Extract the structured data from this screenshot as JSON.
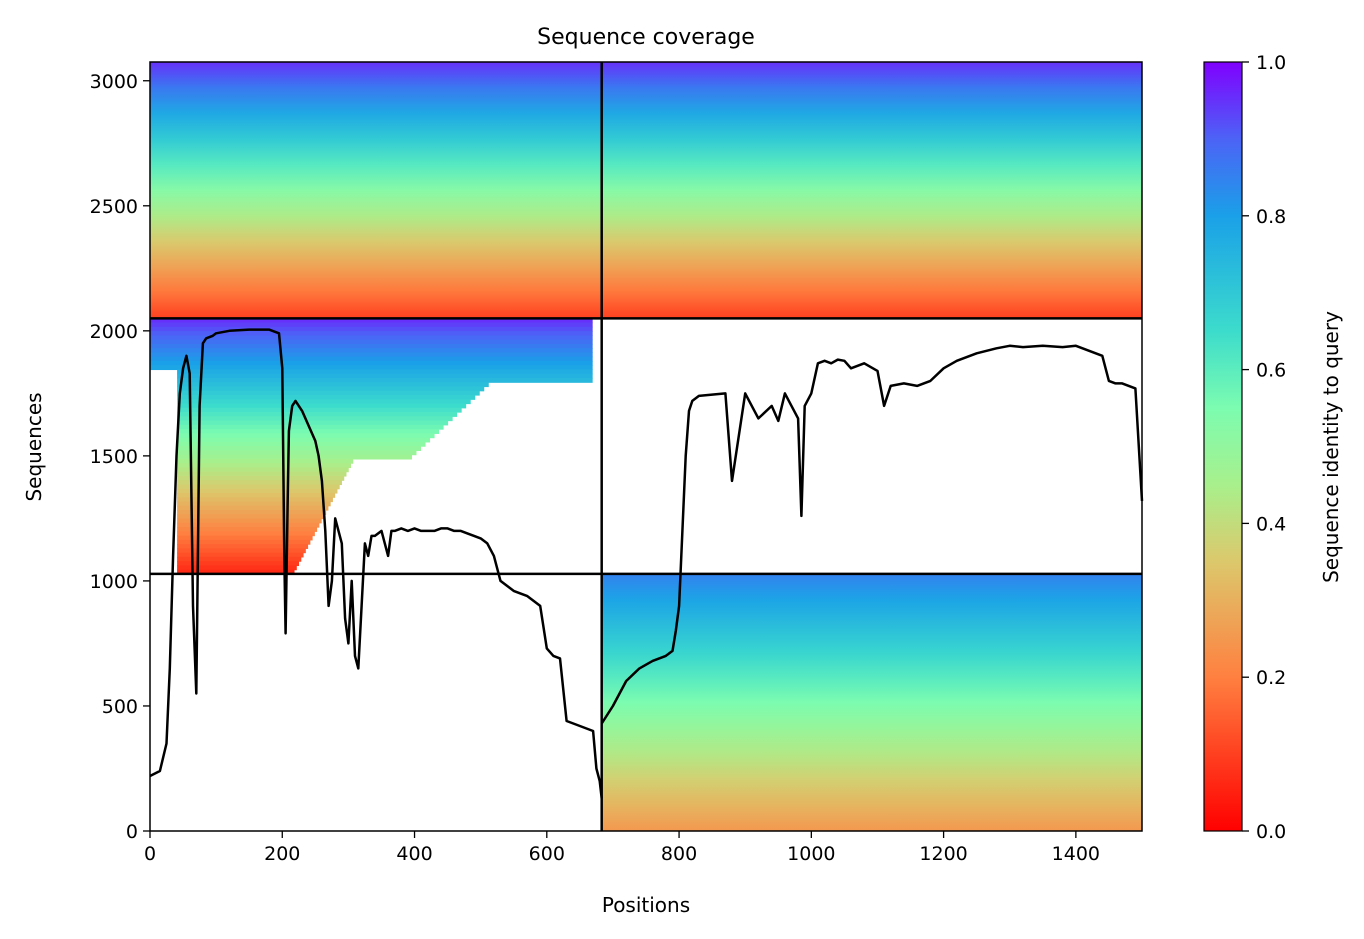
{
  "chart_data": {
    "type": "heatmap",
    "title": "Sequence coverage",
    "xlabel": "Positions",
    "ylabel": "Sequences",
    "xlim": [
      0,
      1500
    ],
    "ylim": [
      0,
      3075
    ],
    "x_ticks": [
      0,
      200,
      400,
      600,
      800,
      1000,
      1200,
      1400
    ],
    "y_ticks": [
      0,
      500,
      1000,
      1500,
      2000,
      2500,
      3000
    ],
    "grid": false,
    "colorscale": "rainbow_r",
    "colorbar": {
      "label": "Sequence identity to query",
      "range": [
        0,
        1
      ],
      "ticks": [
        0.0,
        0.2,
        0.4,
        0.6,
        0.8,
        1.0
      ],
      "tick_labels": [
        "0.0",
        "0.2",
        "0.4",
        "0.6",
        "0.8",
        "1.0"
      ]
    },
    "chain_boundaries": {
      "x": [
        683
      ],
      "y": [
        1028,
        2050
      ]
    },
    "blocks": [
      {
        "x": [
          0,
          683
        ],
        "y": [
          2050,
          3075
        ],
        "top_identity": 0.95,
        "bottom_identity": 0.1,
        "coverage": "high"
      },
      {
        "x": [
          683,
          1500
        ],
        "y": [
          2050,
          3075
        ],
        "top_identity": 0.95,
        "bottom_identity": 0.1,
        "coverage": "high"
      },
      {
        "x": [
          0,
          683
        ],
        "y": [
          1028,
          2050
        ],
        "top_identity": 0.95,
        "bottom_identity": 0.05,
        "coverage": "partial"
      },
      {
        "x": [
          683,
          1500
        ],
        "y": [
          0,
          1028
        ],
        "top_identity": 0.85,
        "bottom_identity": 0.25,
        "coverage": "high"
      }
    ],
    "series": [
      {
        "type": "line",
        "color": "#000000",
        "x": [
          0,
          15,
          25,
          30,
          35,
          40,
          45,
          50,
          55,
          60,
          65,
          70,
          75,
          80,
          85,
          90,
          95,
          100,
          120,
          150,
          180,
          195,
          200,
          203,
          205,
          208,
          210,
          215,
          220,
          230,
          240,
          250,
          255,
          260,
          265,
          270,
          275,
          280,
          285,
          290,
          295,
          300,
          305,
          310,
          315,
          320,
          325,
          330,
          335,
          340,
          350,
          355,
          360,
          365,
          370,
          380,
          390,
          400,
          410,
          420,
          430,
          440,
          450,
          460,
          470,
          480,
          490,
          500,
          510,
          520,
          530,
          540,
          550,
          560,
          570,
          580,
          590,
          600,
          610,
          620,
          630,
          640,
          650,
          660,
          670,
          675,
          680,
          683
        ],
        "y": [
          220,
          240,
          350,
          650,
          1100,
          1500,
          1750,
          1850,
          1900,
          1830,
          900,
          550,
          1700,
          1950,
          1970,
          1975,
          1980,
          1990,
          2000,
          2005,
          2005,
          1990,
          1850,
          1100,
          790,
          1300,
          1600,
          1700,
          1720,
          1680,
          1620,
          1560,
          1500,
          1400,
          1200,
          900,
          1000,
          1250,
          1200,
          1150,
          850,
          750,
          1000,
          700,
          650,
          900,
          1150,
          1100,
          1180,
          1180,
          1200,
          1150,
          1100,
          1200,
          1200,
          1210,
          1200,
          1210,
          1200,
          1200,
          1200,
          1210,
          1210,
          1200,
          1200,
          1190,
          1180,
          1170,
          1150,
          1100,
          1000,
          980,
          960,
          950,
          940,
          920,
          900,
          730,
          700,
          690,
          440,
          430,
          420,
          410,
          400,
          250,
          200,
          130
        ]
      },
      {
        "type": "line",
        "color": "#000000",
        "x": [
          683,
          700,
          720,
          740,
          760,
          780,
          790,
          795,
          800,
          805,
          810,
          815,
          820,
          830,
          850,
          870,
          880,
          900,
          920,
          940,
          950,
          960,
          970,
          980,
          985,
          990,
          1000,
          1010,
          1020,
          1030,
          1040,
          1050,
          1060,
          1080,
          1100,
          1110,
          1120,
          1140,
          1160,
          1180,
          1200,
          1220,
          1250,
          1280,
          1300,
          1320,
          1350,
          1380,
          1400,
          1420,
          1430,
          1440,
          1450,
          1460,
          1470,
          1480,
          1490,
          1500
        ],
        "y": [
          430,
          500,
          600,
          650,
          680,
          700,
          720,
          800,
          900,
          1200,
          1500,
          1680,
          1720,
          1740,
          1745,
          1750,
          1400,
          1750,
          1650,
          1700,
          1640,
          1750,
          1700,
          1650,
          1260,
          1700,
          1750,
          1870,
          1880,
          1870,
          1885,
          1880,
          1850,
          1870,
          1840,
          1700,
          1780,
          1790,
          1780,
          1800,
          1850,
          1880,
          1910,
          1930,
          1940,
          1935,
          1940,
          1935,
          1940,
          1920,
          1910,
          1900,
          1800,
          1790,
          1790,
          1780,
          1770,
          1320
        ]
      }
    ]
  }
}
